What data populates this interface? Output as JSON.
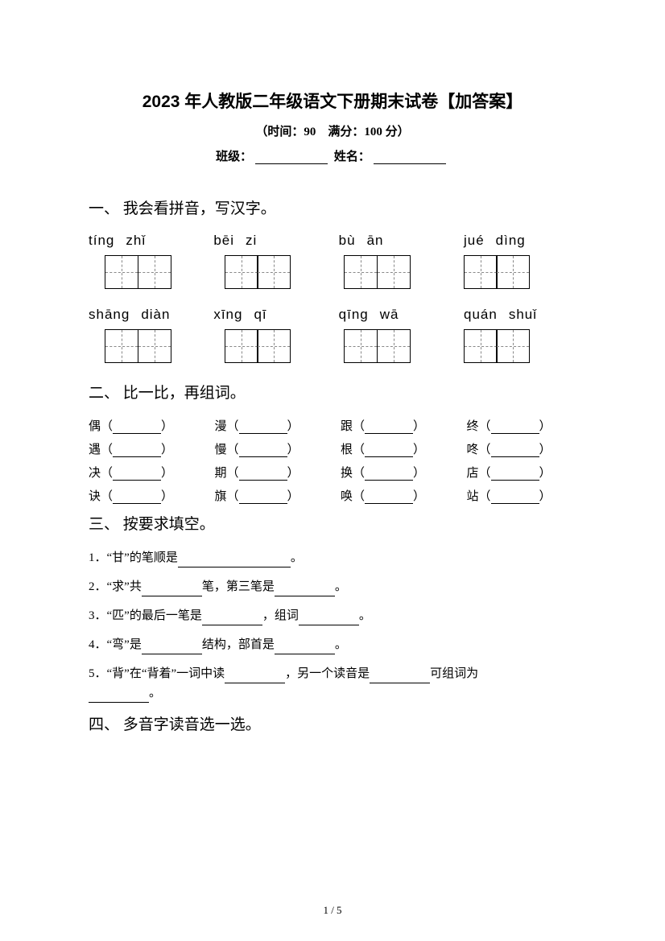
{
  "title": "2023 年人教版二年级语文下册期末试卷【加答案】",
  "subtitle": "（时间：90　满分：100 分）",
  "info": {
    "class_label": "班级：",
    "name_label": "姓名："
  },
  "section1": {
    "title": "一、 我会看拼音，写汉字。",
    "row1": [
      {
        "p1": "tíng",
        "p2": "zhǐ"
      },
      {
        "p1": "bēi",
        "p2": "zi"
      },
      {
        "p1": "bù",
        "p2": "ān"
      },
      {
        "p1": "jué",
        "p2": "dìng"
      }
    ],
    "row2": [
      {
        "p1": "shāng",
        "p2": "diàn"
      },
      {
        "p1": "xīng",
        "p2": "qī"
      },
      {
        "p1": "qīng",
        "p2": "wā"
      },
      {
        "p1": "quán",
        "p2": "shuǐ"
      }
    ]
  },
  "section2": {
    "title": "二、 比一比，再组词。",
    "items": [
      "偶（",
      "漫（",
      "跟（",
      "终（",
      "遇（",
      "慢（",
      "根（",
      "咚（",
      "决（",
      "期（",
      "换（",
      "店（",
      "诀（",
      "旗（",
      "唤（",
      "站（"
    ],
    "close": "）"
  },
  "section3": {
    "title": "三、 按要求填空。",
    "q1_a": "1．“甘”的笔顺是",
    "q1_b": "。",
    "q2_a": "2．“求”共",
    "q2_b": "笔，第三笔是",
    "q2_c": "。",
    "q3_a": "3．“匹”的最后一笔是",
    "q3_b": "，组词",
    "q3_c": "。",
    "q4_a": "4．“弯”是",
    "q4_b": "结构，部首是",
    "q4_c": "。",
    "q5_a": "5．“背”在“背着”一词中读",
    "q5_b": "，另一个读音是",
    "q5_c": "可组词为",
    "q5_d": "。"
  },
  "section4": {
    "title": "四、 多音字读音选一选。"
  },
  "footer": "1 / 5"
}
